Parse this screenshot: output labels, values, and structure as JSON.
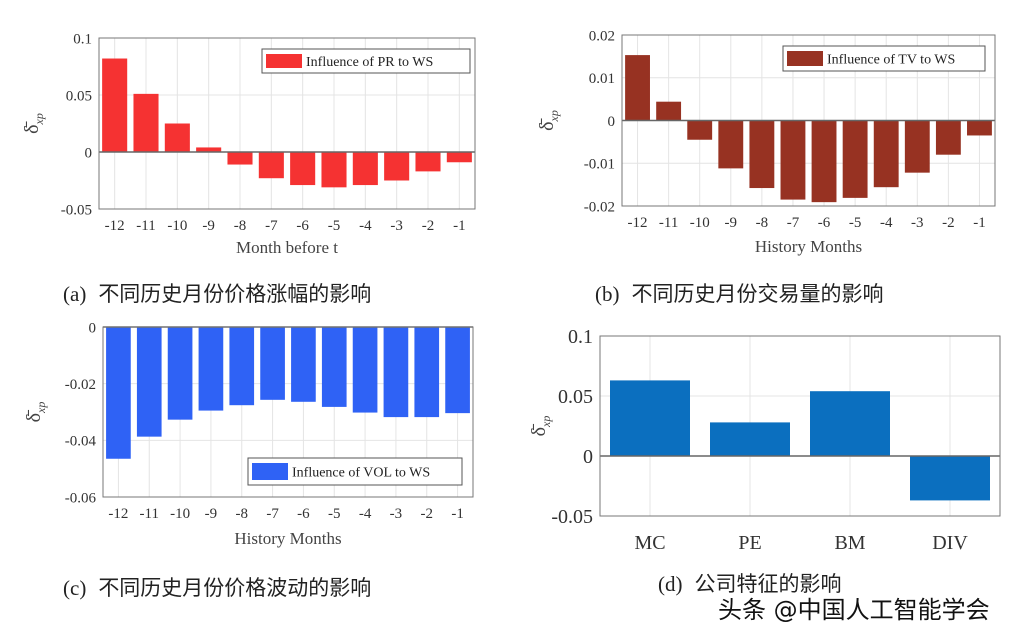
{
  "chart_data": [
    {
      "type": "bar",
      "id": "a",
      "categories": [
        "-12",
        "-11",
        "-10",
        "-9",
        "-8",
        "-7",
        "-6",
        "-5",
        "-4",
        "-3",
        "-2",
        "-1"
      ],
      "series": [
        {
          "name": "Influence of PR to WS",
          "values": [
            0.082,
            0.051,
            0.025,
            0.004,
            -0.011,
            -0.023,
            -0.029,
            -0.031,
            -0.029,
            -0.025,
            -0.017,
            -0.009
          ],
          "color": "#f53232"
        }
      ],
      "xlabel": "Month before t",
      "ylabel": {
        "symbol": "δ̄",
        "sub": "xp"
      },
      "ylim": [
        -0.05,
        0.1
      ],
      "yticks": [
        -0.05,
        0,
        0.05,
        0.1
      ],
      "ytick_labels": [
        "-0.05",
        "0",
        "0.05",
        "0.1"
      ],
      "grid": true,
      "legend": "top-right"
    },
    {
      "type": "bar",
      "id": "b",
      "categories": [
        "-12",
        "-11",
        "-10",
        "-9",
        "-8",
        "-7",
        "-6",
        "-5",
        "-4",
        "-3",
        "-2",
        "-1"
      ],
      "series": [
        {
          "name": "Influence of TV to WS",
          "values": [
            0.0153,
            0.0044,
            -0.0045,
            -0.0112,
            -0.0158,
            -0.0185,
            -0.0191,
            -0.0181,
            -0.0156,
            -0.0122,
            -0.008,
            -0.0035
          ],
          "color": "#973222"
        }
      ],
      "xlabel": "History Months",
      "ylabel": {
        "symbol": "δ̄",
        "sub": "xp"
      },
      "ylim": [
        -0.02,
        0.02
      ],
      "yticks": [
        -0.02,
        -0.01,
        0,
        0.01,
        0.02
      ],
      "ytick_labels": [
        "-0.02",
        "-0.01",
        "0",
        "0.01",
        "0.02"
      ],
      "grid": true,
      "legend": "top-right"
    },
    {
      "type": "bar",
      "id": "c",
      "categories": [
        "-12",
        "-11",
        "-10",
        "-9",
        "-8",
        "-7",
        "-6",
        "-5",
        "-4",
        "-3",
        "-2",
        "-1"
      ],
      "series": [
        {
          "name": "Influence of VOL to WS",
          "values": [
            -0.0465,
            -0.0387,
            -0.0327,
            -0.0295,
            -0.0276,
            -0.0257,
            -0.0264,
            -0.0282,
            -0.0302,
            -0.0318,
            -0.0318,
            -0.0304
          ],
          "color": "#2f62f5"
        }
      ],
      "xlabel": "History Months",
      "ylabel": {
        "symbol": "δ̄",
        "sub": "xp"
      },
      "ylim": [
        -0.06,
        0
      ],
      "yticks": [
        -0.06,
        -0.04,
        -0.02,
        0
      ],
      "ytick_labels": [
        "-0.06",
        "-0.04",
        "-0.02",
        "0"
      ],
      "grid": true,
      "legend": "bottom-right"
    },
    {
      "type": "bar",
      "id": "d",
      "categories": [
        "MC",
        "PE",
        "BM",
        "DIV"
      ],
      "series": [
        {
          "values": [
            0.063,
            0.028,
            0.054,
            -0.037
          ],
          "color": "#0b6fbf"
        }
      ],
      "xlabel": "",
      "ylabel": {
        "symbol": "δ̄",
        "sub": "xp"
      },
      "ylim": [
        -0.05,
        0.1
      ],
      "yticks": [
        -0.05,
        0,
        0.05,
        0.1
      ],
      "ytick_labels": [
        "-0.05",
        "0",
        "0.05",
        "0.1"
      ],
      "grid": true,
      "legend": "none"
    }
  ],
  "captions": [
    {
      "label": "(a)",
      "text": "不同历史月份价格涨幅的影响"
    },
    {
      "label": "(b)",
      "text": "不同历史月份交易量的影响"
    },
    {
      "label": "(c)",
      "text": "不同历史月份价格波动的影响"
    },
    {
      "label": "(d)",
      "text": "公司特征的影响"
    }
  ],
  "watermark": "头条 @中国人工智能学会"
}
